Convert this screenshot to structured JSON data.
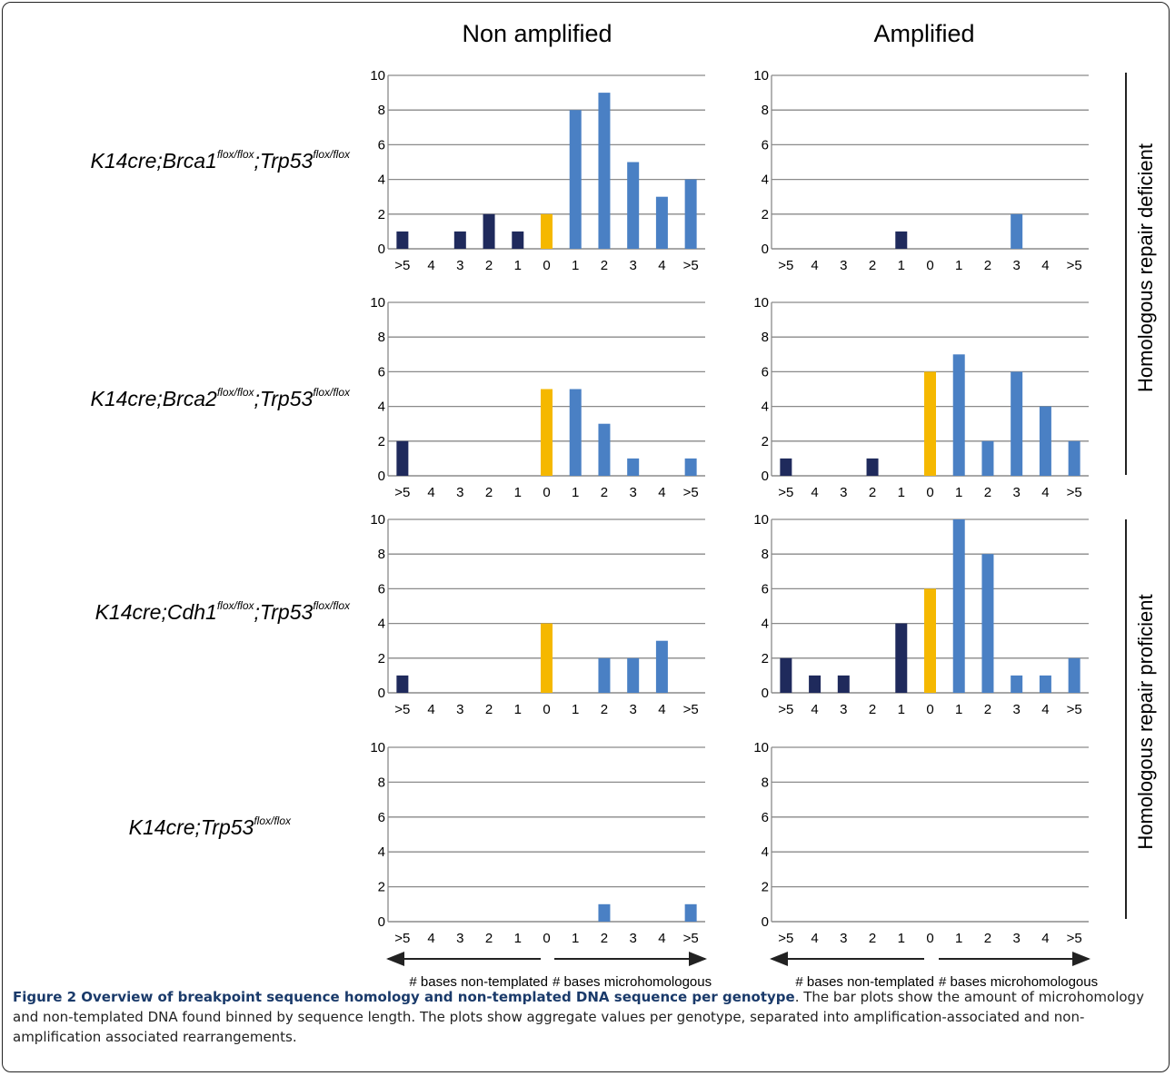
{
  "column_titles": [
    "Non amplified",
    "Amplified"
  ],
  "genotypes": [
    {
      "pre": "K14cre;Brca1",
      "sup1": "flox/flox",
      "mid": ";Trp53",
      "sup2": "flox/flox"
    },
    {
      "pre": "K14cre;Brca2",
      "sup1": "flox/flox",
      "mid": ";Trp53",
      "sup2": "flox/flox"
    },
    {
      "pre": "K14cre;Cdh1",
      "sup1": "flox/flox",
      "mid": ";Trp53",
      "sup2": "flox/flox"
    },
    {
      "pre": "K14cre;Trp53",
      "sup1": "flox/flox",
      "mid": "",
      "sup2": ""
    }
  ],
  "side_labels": [
    "Homologous repair deficient",
    "Homologous repair proficient"
  ],
  "arrow_labels": {
    "left": "# bases non-templated",
    "right": "# bases microhomologous"
  },
  "caption": {
    "lead": "Figure 2 Overview of breakpoint sequence homology and non-templated DNA sequence per genotype",
    "body": ". The bar plots show the amount of microhomology and non-templated DNA found binned by sequence length. The plots show aggregate values per genotype, separated into amplification-associated and non-amplification associated rearrangements."
  },
  "colors": {
    "non_templated": "#1f2a5c",
    "zero": "#f5b800",
    "microhomologous": "#4a80c4",
    "grid": "#8a8a8a"
  },
  "chart_data": [
    {
      "type": "bar",
      "genotype": "K14cre;Brca1flox/flox;Trp53flox/flox",
      "amplification": "Non amplified",
      "categories": [
        ">5",
        "4",
        "3",
        "2",
        "1",
        "0",
        "1",
        "2",
        "3",
        "4",
        ">5"
      ],
      "values": [
        1,
        0,
        1,
        2,
        1,
        2,
        8,
        9,
        5,
        3,
        4
      ],
      "yticks": [
        0,
        2,
        4,
        6,
        8,
        10
      ],
      "ylim": [
        0,
        10
      ]
    },
    {
      "type": "bar",
      "genotype": "K14cre;Brca1flox/flox;Trp53flox/flox",
      "amplification": "Amplified",
      "categories": [
        ">5",
        "4",
        "3",
        "2",
        "1",
        "0",
        "1",
        "2",
        "3",
        "4",
        ">5"
      ],
      "values": [
        0,
        0,
        0,
        0,
        1,
        0,
        0,
        0,
        2,
        0,
        0
      ],
      "yticks": [
        0,
        2,
        4,
        6,
        8,
        10
      ],
      "ylim": [
        0,
        10
      ]
    },
    {
      "type": "bar",
      "genotype": "K14cre;Brca2flox/flox;Trp53flox/flox",
      "amplification": "Non amplified",
      "categories": [
        ">5",
        "4",
        "3",
        "2",
        "1",
        "0",
        "1",
        "2",
        "3",
        "4",
        ">5"
      ],
      "values": [
        2,
        0,
        0,
        0,
        0,
        5,
        5,
        3,
        1,
        0,
        1
      ],
      "yticks": [
        0,
        2,
        4,
        6,
        8,
        10
      ],
      "ylim": [
        0,
        10
      ]
    },
    {
      "type": "bar",
      "genotype": "K14cre;Brca2flox/flox;Trp53flox/flox",
      "amplification": "Amplified",
      "categories": [
        ">5",
        "4",
        "3",
        "2",
        "1",
        "0",
        "1",
        "2",
        "3",
        "4",
        ">5"
      ],
      "values": [
        1,
        0,
        0,
        1,
        0,
        6,
        7,
        2,
        6,
        4,
        2
      ],
      "yticks": [
        0,
        2,
        4,
        6,
        8,
        10
      ],
      "ylim": [
        0,
        10
      ]
    },
    {
      "type": "bar",
      "genotype": "K14cre;Cdh1flox/flox;Trp53flox/flox",
      "amplification": "Non amplified",
      "categories": [
        ">5",
        "4",
        "3",
        "2",
        "1",
        "0",
        "1",
        "2",
        "3",
        "4",
        ">5"
      ],
      "values": [
        1,
        0,
        0,
        0,
        0,
        4,
        0,
        2,
        2,
        3,
        0
      ],
      "yticks": [
        0,
        2,
        4,
        6,
        8,
        10
      ],
      "ylim": [
        0,
        10
      ]
    },
    {
      "type": "bar",
      "genotype": "K14cre;Cdh1flox/flox;Trp53flox/flox",
      "amplification": "Amplified",
      "categories": [
        ">5",
        "4",
        "3",
        "2",
        "1",
        "0",
        "1",
        "2",
        "3",
        "4",
        ">5"
      ],
      "values": [
        2,
        1,
        1,
        0,
        4,
        6,
        10,
        8,
        1,
        1,
        2
      ],
      "yticks": [
        0,
        2,
        4,
        6,
        8,
        10
      ],
      "ylim": [
        0,
        10
      ]
    },
    {
      "type": "bar",
      "genotype": "K14cre;Trp53flox/flox",
      "amplification": "Non amplified",
      "categories": [
        ">5",
        "4",
        "3",
        "2",
        "1",
        "0",
        "1",
        "2",
        "3",
        "4",
        ">5"
      ],
      "values": [
        0,
        0,
        0,
        0,
        0,
        0,
        0,
        1,
        0,
        0,
        1
      ],
      "yticks": [
        0,
        2,
        4,
        6,
        8,
        10
      ],
      "ylim": [
        0,
        10
      ]
    },
    {
      "type": "bar",
      "genotype": "K14cre;Trp53flox/flox",
      "amplification": "Amplified",
      "categories": [
        ">5",
        "4",
        "3",
        "2",
        "1",
        "0",
        "1",
        "2",
        "3",
        "4",
        ">5"
      ],
      "values": [
        0,
        0,
        0,
        0,
        0,
        0,
        0,
        0,
        0,
        0,
        0
      ],
      "yticks": [
        0,
        2,
        4,
        6,
        8,
        10
      ],
      "ylim": [
        0,
        10
      ]
    }
  ]
}
